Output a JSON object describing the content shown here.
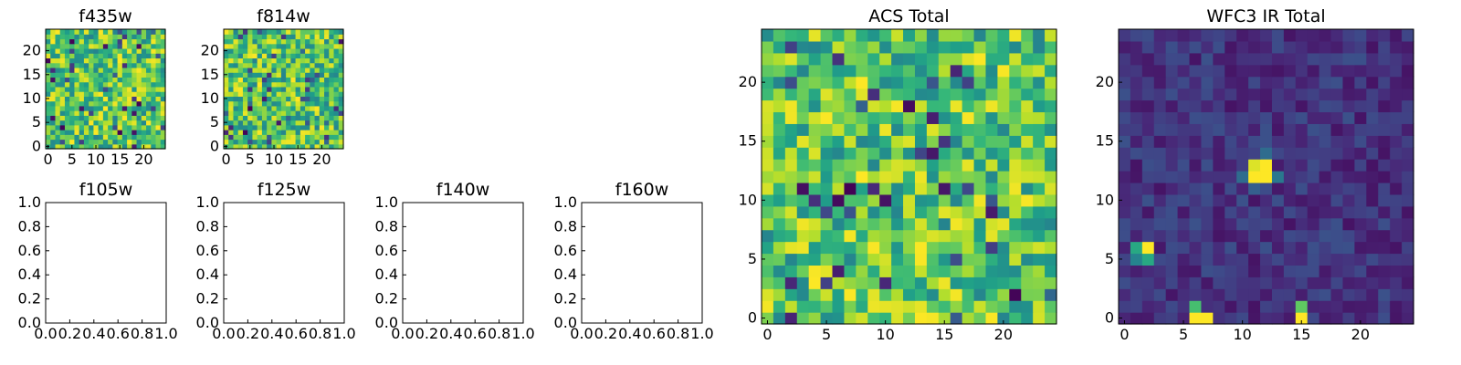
{
  "chart_data": [
    {
      "id": "f435w",
      "type": "heatmap",
      "title": "f435w",
      "colormap": "viridis",
      "grid_size": [
        25,
        25
      ],
      "xlim": [
        -0.5,
        24.5
      ],
      "ylim": [
        -0.5,
        24.5
      ],
      "x_ticks": [
        0,
        5,
        10,
        15,
        20
      ],
      "y_ticks": [
        0,
        5,
        10,
        15,
        20
      ],
      "x_tick_labels": [
        "0",
        "5",
        "10",
        "15",
        "20"
      ],
      "y_tick_labels": [
        "0",
        "5",
        "10",
        "15",
        "20"
      ],
      "value_range": [
        0,
        1
      ],
      "pattern": "noise-bright",
      "seed": 11
    },
    {
      "id": "f814w",
      "type": "heatmap",
      "title": "f814w",
      "colormap": "viridis",
      "grid_size": [
        25,
        25
      ],
      "xlim": [
        -0.5,
        24.5
      ],
      "ylim": [
        -0.5,
        24.5
      ],
      "x_ticks": [
        0,
        5,
        10,
        15,
        20
      ],
      "y_ticks": [
        0,
        5,
        10,
        15,
        20
      ],
      "x_tick_labels": [
        "0",
        "5",
        "10",
        "15",
        "20"
      ],
      "y_tick_labels": [
        "0",
        "5",
        "10",
        "15",
        "20"
      ],
      "value_range": [
        0,
        1
      ],
      "pattern": "noise-bright",
      "seed": 23
    },
    {
      "id": "f105w",
      "type": "scatter",
      "title": "f105w",
      "series": [],
      "xlim": [
        0,
        1
      ],
      "ylim": [
        0,
        1
      ],
      "x_tick_labels": [
        "0.0",
        "0.2",
        "0.4",
        "0.6",
        "0.8",
        "1.0"
      ],
      "y_tick_labels": [
        "0.0",
        "0.2",
        "0.4",
        "0.6",
        "0.8",
        "1.0"
      ]
    },
    {
      "id": "f125w",
      "type": "scatter",
      "title": "f125w",
      "series": [],
      "xlim": [
        0,
        1
      ],
      "ylim": [
        0,
        1
      ],
      "x_tick_labels": [
        "0.0",
        "0.2",
        "0.4",
        "0.6",
        "0.8",
        "1.0"
      ],
      "y_tick_labels": [
        "0.0",
        "0.2",
        "0.4",
        "0.6",
        "0.8",
        "1.0"
      ]
    },
    {
      "id": "f140w",
      "type": "scatter",
      "title": "f140w",
      "series": [],
      "xlim": [
        0,
        1
      ],
      "ylim": [
        0,
        1
      ],
      "x_tick_labels": [
        "0.0",
        "0.2",
        "0.4",
        "0.6",
        "0.8",
        "1.0"
      ],
      "y_tick_labels": [
        "0.0",
        "0.2",
        "0.4",
        "0.6",
        "0.8",
        "1.0"
      ]
    },
    {
      "id": "f160w",
      "type": "scatter",
      "title": "f160w",
      "series": [],
      "xlim": [
        0,
        1
      ],
      "ylim": [
        0,
        1
      ],
      "x_tick_labels": [
        "0.0",
        "0.2",
        "0.4",
        "0.6",
        "0.8",
        "1.0"
      ],
      "y_tick_labels": [
        "0.0",
        "0.2",
        "0.4",
        "0.6",
        "0.8",
        "1.0"
      ]
    },
    {
      "id": "acs-total",
      "type": "heatmap",
      "title": "ACS Total",
      "colormap": "viridis",
      "grid_size": [
        25,
        25
      ],
      "xlim": [
        -0.5,
        24.5
      ],
      "ylim": [
        -0.5,
        24.5
      ],
      "x_ticks": [
        0,
        5,
        10,
        15,
        20
      ],
      "y_ticks": [
        0,
        5,
        10,
        15,
        20
      ],
      "x_tick_labels": [
        "0",
        "5",
        "10",
        "15",
        "20"
      ],
      "y_tick_labels": [
        "0",
        "5",
        "10",
        "15",
        "20"
      ],
      "value_range": [
        0,
        1
      ],
      "pattern": "noise-bright",
      "seed": 37
    },
    {
      "id": "wfc3-ir-total",
      "type": "heatmap",
      "title": "WFC3 IR Total",
      "colormap": "viridis",
      "grid_size": [
        25,
        25
      ],
      "xlim": [
        -0.5,
        24.5
      ],
      "ylim": [
        -0.5,
        24.5
      ],
      "x_ticks": [
        0,
        5,
        10,
        15,
        20
      ],
      "y_ticks": [
        0,
        5,
        10,
        15,
        20
      ],
      "x_tick_labels": [
        "0",
        "5",
        "10",
        "15",
        "20"
      ],
      "y_tick_labels": [
        "0",
        "5",
        "10",
        "15",
        "20"
      ],
      "value_range": [
        0,
        1
      ],
      "pattern": "noise-dark",
      "seed": 53,
      "bright_sources": [
        {
          "x": 11,
          "y": 12,
          "value": 1.0
        },
        {
          "x": 12,
          "y": 12,
          "value": 1.0
        },
        {
          "x": 11,
          "y": 13,
          "value": 0.95
        },
        {
          "x": 12,
          "y": 13,
          "value": 1.0
        },
        {
          "x": 13,
          "y": 12,
          "value": 0.4
        },
        {
          "x": 10,
          "y": 12,
          "value": 0.35
        },
        {
          "x": 11,
          "y": 11,
          "value": 0.3
        },
        {
          "x": 12,
          "y": 14,
          "value": 0.35
        },
        {
          "x": 2,
          "y": 6,
          "value": 1.0
        },
        {
          "x": 1,
          "y": 6,
          "value": 0.6
        },
        {
          "x": 2,
          "y": 5,
          "value": 0.6
        },
        {
          "x": 1,
          "y": 5,
          "value": 0.45
        },
        {
          "x": 6,
          "y": 0,
          "value": 1.0
        },
        {
          "x": 7,
          "y": 0,
          "value": 1.0
        },
        {
          "x": 6,
          "y": 1,
          "value": 0.7
        },
        {
          "x": 15,
          "y": 0,
          "value": 1.0
        },
        {
          "x": 15,
          "y": 1,
          "value": 0.75
        }
      ]
    }
  ]
}
